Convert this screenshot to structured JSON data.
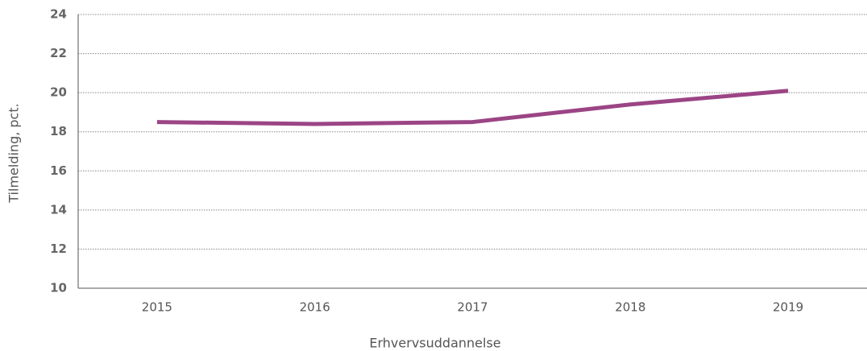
{
  "chart_data": {
    "type": "line",
    "x_label": "Erhvervsuddannelse",
    "y_label": "Tilmelding, pct.",
    "categories": [
      "2015",
      "2016",
      "2017",
      "2018",
      "2019"
    ],
    "series": [
      {
        "name": "Erhvervsuddannelse",
        "color": "#9b4585",
        "values": [
          18.5,
          18.4,
          18.5,
          19.4,
          20.1
        ]
      }
    ],
    "ylim": [
      10,
      24
    ],
    "yticks": [
      10,
      12,
      14,
      16,
      18,
      20,
      22,
      24
    ],
    "grid": true
  }
}
